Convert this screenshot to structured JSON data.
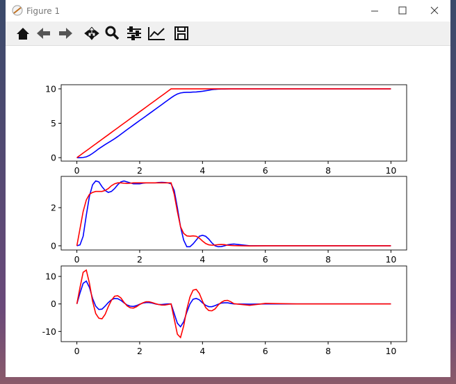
{
  "window": {
    "title": "Figure 1"
  },
  "chart_data": [
    {
      "type": "line",
      "x": [
        0,
        0.1,
        0.2,
        0.3,
        0.4,
        0.5,
        0.6,
        0.7,
        0.8,
        0.9,
        1,
        1.1,
        1.2,
        1.3,
        1.4,
        1.5,
        1.6,
        1.7,
        1.8,
        1.9,
        2,
        2.1,
        2.2,
        2.3,
        2.4,
        2.5,
        2.6,
        2.7,
        2.8,
        2.9,
        3,
        3.1,
        3.2,
        3.3,
        3.4,
        3.5,
        3.6,
        3.7,
        3.8,
        3.9,
        4,
        4.1,
        4.2,
        4.3,
        4.4,
        4.5,
        4.6,
        4.7,
        4.8,
        4.9,
        5,
        5.5,
        6,
        7,
        8,
        9,
        10
      ],
      "series": [
        {
          "color": "#0000ff",
          "values": [
            0,
            0,
            0.03,
            0.12,
            0.33,
            0.62,
            0.95,
            1.3,
            1.6,
            1.9,
            2.18,
            2.46,
            2.75,
            3.06,
            3.4,
            3.74,
            4.08,
            4.41,
            4.74,
            5.07,
            5.4,
            5.72,
            6.05,
            6.38,
            6.71,
            7.04,
            7.37,
            7.7,
            8.04,
            8.37,
            8.7,
            9.0,
            9.25,
            9.4,
            9.47,
            9.5,
            9.5,
            9.53,
            9.55,
            9.6,
            9.65,
            9.72,
            9.8,
            9.88,
            9.93,
            9.96,
            9.98,
            9.98,
            9.99,
            10,
            10,
            10,
            10,
            10,
            10,
            10,
            10
          ]
        },
        {
          "color": "#ff0000",
          "values": [
            0,
            0.33,
            0.67,
            1,
            1.33,
            1.67,
            2,
            2.33,
            2.67,
            3,
            3.33,
            3.67,
            4,
            4.33,
            4.67,
            5,
            5.33,
            5.67,
            6,
            6.33,
            6.67,
            7,
            7.33,
            7.67,
            8,
            8.33,
            8.67,
            9,
            9.33,
            9.67,
            10,
            10,
            10,
            10,
            10,
            10,
            10,
            10,
            10,
            10,
            10,
            10,
            10,
            10,
            10,
            10,
            10,
            10,
            10,
            10,
            10,
            10,
            10,
            10,
            10,
            10,
            10
          ]
        }
      ],
      "xlim": [
        -0.5,
        10.5
      ],
      "xticks": [
        0,
        2,
        4,
        6,
        8,
        10
      ],
      "ylim": [
        -0.5,
        10.6
      ],
      "yticks": [
        0,
        5,
        10
      ]
    },
    {
      "type": "line",
      "x": [
        0,
        0.1,
        0.2,
        0.3,
        0.4,
        0.5,
        0.6,
        0.7,
        0.8,
        0.9,
        1,
        1.1,
        1.2,
        1.3,
        1.4,
        1.5,
        1.6,
        1.7,
        1.8,
        1.9,
        2,
        2.1,
        2.2,
        2.3,
        2.4,
        2.5,
        2.6,
        2.7,
        2.8,
        2.9,
        3,
        3.1,
        3.2,
        3.3,
        3.4,
        3.5,
        3.6,
        3.7,
        3.8,
        3.9,
        4,
        4.1,
        4.2,
        4.3,
        4.4,
        4.5,
        4.6,
        4.7,
        4.8,
        4.9,
        5,
        5.5,
        6,
        7,
        8,
        9,
        10
      ],
      "series": [
        {
          "color": "#0000ff",
          "values": [
            0,
            0.05,
            0.5,
            1.6,
            2.6,
            3.2,
            3.4,
            3.35,
            3.1,
            2.9,
            2.8,
            2.85,
            3.0,
            3.2,
            3.35,
            3.4,
            3.35,
            3.3,
            3.25,
            3.25,
            3.25,
            3.28,
            3.3,
            3.3,
            3.3,
            3.3,
            3.32,
            3.33,
            3.32,
            3.3,
            3.25,
            2.9,
            2.0,
            1.0,
            0.3,
            -0.05,
            -0.05,
            0.1,
            0.3,
            0.5,
            0.55,
            0.5,
            0.35,
            0.15,
            0,
            -0.05,
            -0.04,
            0,
            0.05,
            0.08,
            0.09,
            0,
            0,
            0,
            0,
            0,
            0
          ]
        },
        {
          "color": "#ff0000",
          "values": [
            0,
            0.9,
            1.8,
            2.4,
            2.7,
            2.8,
            2.85,
            2.85,
            2.85,
            2.9,
            3.0,
            3.15,
            3.25,
            3.3,
            3.3,
            3.28,
            3.27,
            3.28,
            3.3,
            3.3,
            3.3,
            3.3,
            3.3,
            3.3,
            3.3,
            3.3,
            3.3,
            3.3,
            3.3,
            3.3,
            3.3,
            2.7,
            1.8,
            1.0,
            0.65,
            0.52,
            0.5,
            0.52,
            0.5,
            0.4,
            0.25,
            0.12,
            0.05,
            0.03,
            0.04,
            0.06,
            0.07,
            0.06,
            0.03,
            0.02,
            0.01,
            -0.01,
            0,
            0,
            0,
            0,
            0
          ]
        }
      ],
      "xlim": [
        -0.5,
        10.5
      ],
      "xticks": [
        0,
        2,
        4,
        6,
        8,
        10
      ],
      "ylim": [
        -0.22,
        3.64
      ],
      "yticks": [
        0,
        2
      ]
    },
    {
      "type": "line",
      "x": [
        0,
        0.1,
        0.2,
        0.3,
        0.4,
        0.5,
        0.6,
        0.7,
        0.8,
        0.9,
        1,
        1.1,
        1.2,
        1.3,
        1.4,
        1.5,
        1.6,
        1.7,
        1.8,
        1.9,
        2,
        2.1,
        2.2,
        2.3,
        2.4,
        2.5,
        2.6,
        2.7,
        2.8,
        2.9,
        3,
        3.1,
        3.2,
        3.3,
        3.4,
        3.5,
        3.6,
        3.7,
        3.8,
        3.9,
        4,
        4.1,
        4.2,
        4.3,
        4.4,
        4.5,
        4.6,
        4.7,
        4.8,
        4.9,
        5,
        5.5,
        6,
        7,
        8,
        9,
        10
      ],
      "series": [
        {
          "color": "#0000ff",
          "values": [
            0,
            4,
            7.5,
            8.3,
            6,
            2,
            -0.8,
            -2,
            -1.9,
            -0.8,
            0.5,
            1.5,
            2,
            1.9,
            1.3,
            0.4,
            -0.4,
            -0.8,
            -0.9,
            -0.6,
            -0.1,
            0.3,
            0.5,
            0.5,
            0.3,
            0,
            -0.2,
            -0.2,
            -0.1,
            0,
            0,
            -3.5,
            -7,
            -8.3,
            -6.5,
            -3,
            0,
            1.7,
            2,
            1.5,
            0.4,
            -0.5,
            -1,
            -1,
            -0.6,
            -0.1,
            0.3,
            0.4,
            0.4,
            0.2,
            0,
            -0.1,
            0,
            0,
            0,
            0,
            0
          ]
        },
        {
          "color": "#ff0000",
          "values": [
            0,
            6,
            11.5,
            12.3,
            7.5,
            1,
            -3.5,
            -5.2,
            -5.4,
            -3.8,
            -1,
            1.3,
            2.8,
            3,
            2.2,
            0.6,
            -0.7,
            -1.4,
            -1.5,
            -1,
            -0.2,
            0.4,
            0.8,
            0.8,
            0.5,
            0.1,
            -0.2,
            -0.4,
            -0.4,
            -0.2,
            0,
            -5.5,
            -11,
            -12.2,
            -8,
            -2,
            2.5,
            5,
            5.3,
            3.8,
            1,
            -1.3,
            -2.4,
            -2.5,
            -1.8,
            -0.4,
            0.6,
            1.2,
            1.3,
            0.8,
            0.1,
            -0.5,
            0.2,
            0,
            0,
            0,
            0
          ]
        }
      ],
      "xlim": [
        -0.5,
        10.5
      ],
      "xticks": [
        0,
        2,
        4,
        6,
        8,
        10
      ],
      "ylim": [
        -13.7,
        13.8
      ],
      "yticks": [
        -10,
        0,
        10
      ]
    }
  ]
}
